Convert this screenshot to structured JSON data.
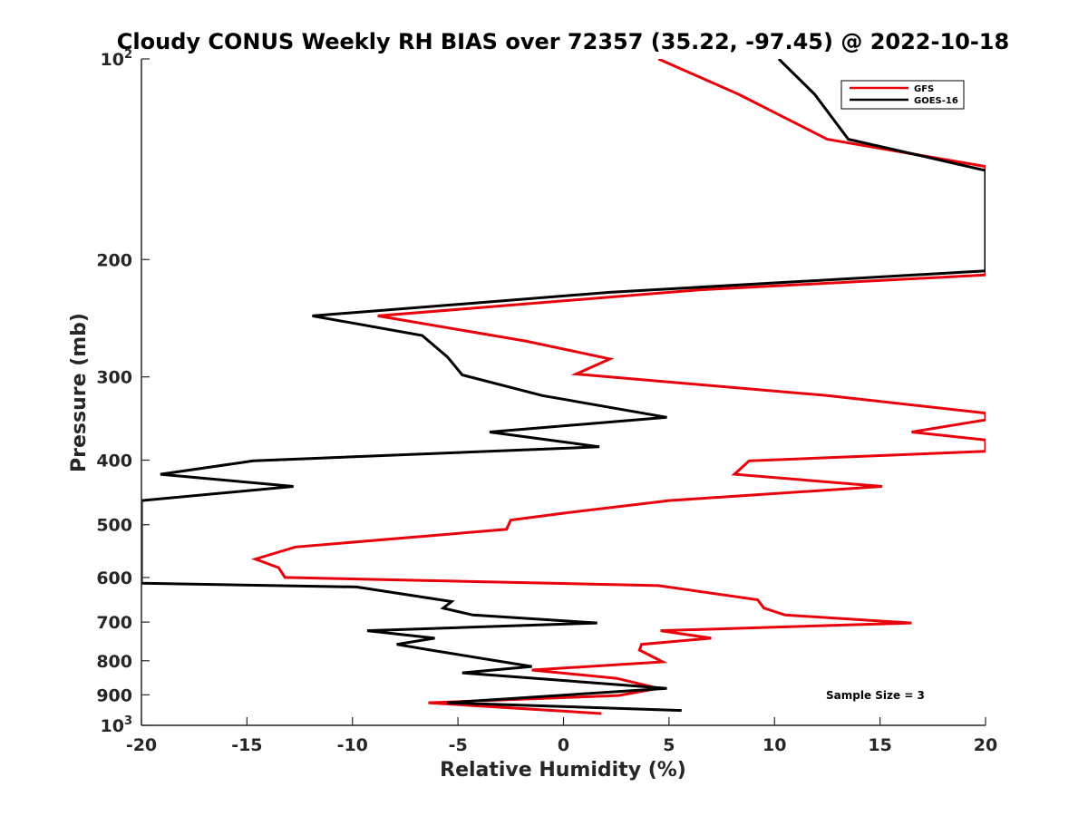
{
  "chart_data": {
    "type": "line",
    "title": "Cloudy CONUS Weekly RH BIAS over 72357 (35.22, -97.45) @ 2022-10-18",
    "xlabel": "Relative Humidity (%)",
    "ylabel": "Pressure (mb)",
    "xlim": [
      -20,
      20
    ],
    "ylim": [
      1000,
      100
    ],
    "y_scale": "log",
    "x_ticks": [
      "-20",
      "-15",
      "-10",
      "-5",
      "0",
      "5",
      "10",
      "15",
      "20"
    ],
    "y_ticks": [
      {
        "value": 100,
        "base": "10",
        "exp": "2"
      },
      {
        "value": 200,
        "label": "200"
      },
      {
        "value": 300,
        "label": "300"
      },
      {
        "value": 400,
        "label": "400"
      },
      {
        "value": 500,
        "label": "500"
      },
      {
        "value": 600,
        "label": "600"
      },
      {
        "value": 700,
        "label": "700"
      },
      {
        "value": 800,
        "label": "800"
      },
      {
        "value": 900,
        "label": "900"
      },
      {
        "value": 1000,
        "base": "10",
        "exp": "3"
      }
    ],
    "grid": false,
    "legend_position": "top-right",
    "annotation": "Sample Size = 3",
    "series": [
      {
        "name": "GFS",
        "color": "#e8000b",
        "points": [
          [
            4.5,
            100
          ],
          [
            8.3,
            113
          ],
          [
            12.5,
            132
          ],
          [
            20,
            145
          ],
          [
            20,
            211
          ],
          [
            6.5,
            222
          ],
          [
            -8.8,
            243
          ],
          [
            -1.8,
            265
          ],
          [
            2.2,
            282
          ],
          [
            0.6,
            297
          ],
          [
            12.5,
            320
          ],
          [
            20,
            340
          ],
          [
            20,
            348
          ],
          [
            16.5,
            363
          ],
          [
            20,
            373
          ],
          [
            20,
            388
          ],
          [
            8.8,
            401
          ],
          [
            8.1,
            420
          ],
          [
            15.1,
            438
          ],
          [
            5,
            460
          ],
          [
            0.1,
            480
          ],
          [
            -2.5,
            492
          ],
          [
            -2.7,
            508
          ],
          [
            -12.7,
            540
          ],
          [
            -14.6,
            563
          ],
          [
            -13.5,
            580
          ],
          [
            -13.2,
            600
          ],
          [
            4.5,
            617
          ],
          [
            9.2,
            648
          ],
          [
            9.5,
            667
          ],
          [
            10.5,
            683
          ],
          [
            16.5,
            702
          ],
          [
            4.6,
            721
          ],
          [
            7,
            740
          ],
          [
            3.7,
            756
          ],
          [
            3.6,
            771
          ],
          [
            4.7,
            803
          ],
          [
            -1.5,
            826
          ],
          [
            2.5,
            850
          ],
          [
            4.5,
            880
          ],
          [
            2.6,
            902
          ],
          [
            -6.4,
            925
          ],
          [
            1.8,
            960
          ]
        ]
      },
      {
        "name": "GOES-16",
        "color": "#000000",
        "points": [
          [
            10.2,
            100
          ],
          [
            11.9,
            113
          ],
          [
            13.5,
            132
          ],
          [
            20,
            147
          ],
          [
            20,
            208
          ],
          [
            2.2,
            224
          ],
          [
            -11.9,
            243
          ],
          [
            -6.7,
            260
          ],
          [
            -5.5,
            280
          ],
          [
            -4.8,
            298
          ],
          [
            -1.0,
            320
          ],
          [
            4.9,
            345
          ],
          [
            -3.5,
            363
          ],
          [
            1.7,
            382
          ],
          [
            -14.7,
            401
          ],
          [
            -19.1,
            420
          ],
          [
            -12.8,
            438
          ],
          [
            -20,
            460
          ],
          [
            -20,
            612
          ],
          [
            -9.8,
            620
          ],
          [
            -5.3,
            652
          ],
          [
            -5.7,
            667
          ],
          [
            -4.3,
            683
          ],
          [
            1.6,
            702
          ],
          [
            -9.3,
            721
          ],
          [
            -6.1,
            740
          ],
          [
            -7.9,
            756
          ],
          [
            -6.3,
            771
          ],
          [
            -1.5,
            816
          ],
          [
            -4.8,
            834
          ],
          [
            4.9,
            880
          ],
          [
            -5.5,
            925
          ],
          [
            5.6,
            950
          ]
        ]
      }
    ]
  }
}
